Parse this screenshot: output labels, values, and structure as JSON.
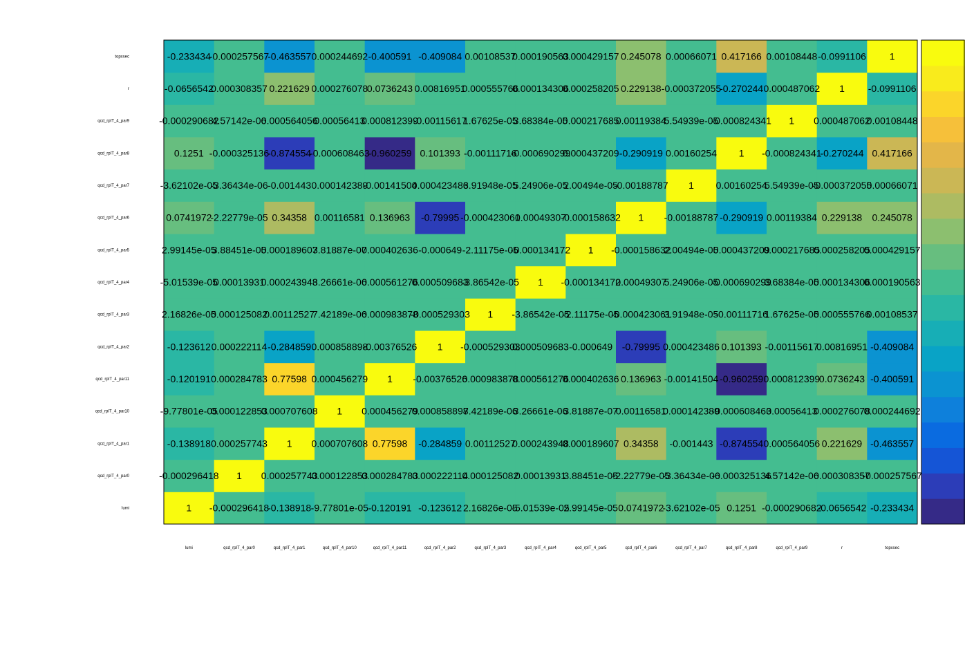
{
  "chart_data": {
    "type": "heatmap",
    "title": "",
    "xlabel": "",
    "ylabel": "",
    "grid": false,
    "zlim": [
      -1,
      1
    ],
    "palette": [
      "#352A87",
      "#2C3DB8",
      "#1555D6",
      "#0A6BE0",
      "#0E80DB",
      "#0B93D1",
      "#09A3C6",
      "#17AEB6",
      "#2AB7A4",
      "#44BD90",
      "#67BE7F",
      "#8CBF6F",
      "#ADBB62",
      "#CBB755",
      "#E3B649",
      "#F6C03A",
      "#FBD52A",
      "#F9EB1C",
      "#F9FB0E"
    ],
    "labels": [
      "lumi",
      "qcd_rpIT_4_par0",
      "qcd_rpIT_4_par1",
      "qcd_rpIT_4_par10",
      "qcd_rpIT_4_par11",
      "qcd_rpIT_4_par2",
      "qcd_rpIT_4_par3",
      "qcd_rpIT_4_par4",
      "qcd_rpIT_4_par5",
      "qcd_rpIT_4_par6",
      "qcd_rpIT_4_par7",
      "qcd_rpIT_4_par8",
      "qcd_rpIT_4_par9",
      "r",
      "topxsec"
    ],
    "matrix": [
      [
        1,
        -0.000296418,
        -0.138918,
        -9.77801e-05,
        -0.120191,
        -0.123612,
        2.16826e-05,
        -5.01539e-05,
        2.99145e-05,
        0.0741972,
        -3.62102e-05,
        0.1251,
        -0.000290682,
        -0.0656542,
        -0.233434
      ],
      [
        -0.000296418,
        1,
        0.000257743,
        0.000122853,
        0.000284783,
        0.000222114,
        0.000125082,
        0.00013931,
        3.88451e-05,
        -2.22779e-05,
        -3.36434e-06,
        -0.000325136,
        4.57142e-06,
        0.000308357,
        -0.000257567
      ],
      [
        -0.138918,
        0.000257743,
        1,
        0.000707608,
        0.77598,
        -0.284859,
        0.00112527,
        0.000243948,
        0.000189607,
        0.34358,
        -0.001443,
        -0.874554,
        0.000564056,
        0.221629,
        -0.463557
      ],
      [
        -9.77801e-05,
        0.000122853,
        0.000707608,
        1,
        0.000456279,
        0.000858898,
        7.42189e-06,
        3.26661e-06,
        3.81887e-07,
        0.00116581,
        0.000142389,
        -0.000608463,
        0.00056413,
        0.000276078,
        0.000244692
      ],
      [
        -0.120191,
        0.000284783,
        0.77598,
        0.000456279,
        1,
        -0.00376526,
        0.000983878,
        0.000561276,
        0.000402636,
        0.136963,
        -0.00141504,
        -0.960259,
        0.000812399,
        0.0736243,
        -0.400591
      ],
      [
        -0.123612,
        0.000222114,
        -0.284859,
        0.000858898,
        -0.00376526,
        1,
        -0.000529303,
        0.000509683,
        -0.000649,
        -0.79995,
        0.000423486,
        0.101393,
        -0.00115617,
        0.00816951,
        -0.409084
      ],
      [
        2.16826e-05,
        0.000125082,
        0.00112527,
        7.42189e-06,
        0.000983878,
        -0.000529303,
        1,
        -3.86542e-05,
        -2.11175e-05,
        -0.000423061,
        3.91948e-05,
        -0.00111716,
        1.67625e-05,
        0.000555766,
        0.00108537
      ],
      [
        -5.01539e-05,
        0.00013931,
        0.000243948,
        3.26661e-06,
        0.000561276,
        0.000509683,
        -3.86542e-05,
        1,
        -0.000134172,
        0.00049307,
        5.24906e-05,
        -0.000690299,
        3.68384e-05,
        0.000134306,
        0.000190563
      ],
      [
        2.99145e-05,
        3.88451e-05,
        0.000189607,
        3.81887e-07,
        0.000402636,
        -0.000649,
        -2.11175e-05,
        -0.000134172,
        1,
        -0.000158632,
        2.00494e-05,
        0.000437209,
        0.000217685,
        0.000258205,
        0.000429157
      ],
      [
        0.0741972,
        -2.22779e-05,
        0.34358,
        0.00116581,
        0.136963,
        -0.79995,
        -0.000423061,
        0.00049307,
        -0.000158632,
        1,
        -0.00188787,
        -0.290919,
        0.00119384,
        0.229138,
        0.245078
      ],
      [
        -3.62102e-05,
        -3.36434e-06,
        -0.001443,
        0.000142389,
        -0.00141504,
        0.000423486,
        3.91948e-05,
        5.24906e-05,
        2.00494e-05,
        -0.00188787,
        1,
        0.00160254,
        5.54939e-05,
        -0.000372055,
        0.00066071
      ],
      [
        0.1251,
        -0.000325136,
        -0.874554,
        -0.000608463,
        -0.960259,
        0.101393,
        -0.00111716,
        -0.000690299,
        0.000437209,
        -0.290919,
        0.00160254,
        1,
        -0.000824341,
        -0.270244,
        0.417166
      ],
      [
        -0.000290682,
        4.57142e-06,
        0.000564056,
        0.00056413,
        0.000812399,
        -0.00115617,
        1.67625e-05,
        3.68384e-05,
        0.000217685,
        0.00119384,
        5.54939e-05,
        -0.000824341,
        1,
        0.000487062,
        0.00108448
      ],
      [
        -0.0656542,
        0.000308357,
        0.221629,
        0.000276078,
        0.0736243,
        0.00816951,
        0.000555766,
        0.000134306,
        0.000258205,
        0.229138,
        -0.000372055,
        -0.270244,
        0.000487062,
        1,
        -0.0991106
      ],
      [
        -0.233434,
        -0.000257567,
        -0.463557,
        0.000244692,
        -0.400591,
        -0.409084,
        0.00108537,
        0.000190563,
        0.000429157,
        0.245078,
        0.00066071,
        0.417166,
        0.00108448,
        -0.0991106,
        1
      ]
    ],
    "cell_text": [
      [
        "1",
        "-0.000296418",
        "-0.138918",
        "-9.77801e-05",
        "-0.120191",
        "-0.123612",
        "2.16826e-05",
        "-5.01539e-05",
        "2.99145e-05",
        "0.0741972",
        "-3.62102e-05",
        "0.1251",
        "-0.000290682",
        "-0.0656542",
        "-0.233434"
      ],
      [
        "-0.000296418",
        "1",
        "0.000257743",
        "0.000122853",
        "0.000284783",
        "0.000222114",
        "0.000125082",
        "0.00013931",
        "3.88451e-05",
        "-2.22779e-05",
        "-3.36434e-06",
        "-0.000325136",
        "4.57142e-06",
        "0.000308357",
        "-0.000257567"
      ],
      [
        "-0.138918",
        "0.000257743",
        "1",
        "0.000707608",
        "0.77598",
        "-0.284859",
        "0.00112527",
        "0.000243948",
        "0.000189607",
        "0.34358",
        "-0.001443",
        "-0.874554",
        "0.000564056",
        "0.221629",
        "-0.463557"
      ],
      [
        "-9.77801e-05",
        "0.000122853",
        "0.000707608",
        "1",
        "0.000456279",
        "0.000858898",
        "7.42189e-06",
        "3.26661e-06",
        "3.81887e-07",
        "0.00116581",
        "0.000142389",
        "-0.000608463",
        "0.00056413",
        "0.000276078",
        "0.000244692"
      ],
      [
        "-0.120191",
        "0.000284783",
        "0.77598",
        "0.000456279",
        "1",
        "-0.00376526",
        "0.000983878",
        "0.000561276",
        "0.000402636",
        "0.136963",
        "-0.00141504",
        "-0.960259",
        "0.000812399",
        "0.0736243",
        "-0.400591"
      ],
      [
        "-0.123612",
        "0.000222114",
        "-0.284859",
        "0.000858898",
        "-0.00376526",
        "1",
        "-0.000529303",
        "0.000509683",
        "-0.000649",
        "-0.79995",
        "0.000423486",
        "0.101393",
        "-0.00115617",
        "0.00816951",
        "-0.409084"
      ],
      [
        "2.16826e-05",
        "0.000125082",
        "0.00112527",
        "7.42189e-06",
        "0.000983878",
        "-0.000529303",
        "1",
        "-3.86542e-05",
        "-2.11175e-05",
        "-0.000423061",
        "3.91948e-05",
        "-0.00111716",
        "1.67625e-05",
        "0.000555766",
        "0.00108537"
      ],
      [
        "-5.01539e-05",
        "0.00013931",
        "0.000243948",
        "3.26661e-06",
        "0.000561276",
        "0.000509683",
        "-3.86542e-05",
        "1",
        "-0.000134172",
        "0.00049307",
        "5.24906e-05",
        "-0.000690299",
        "3.68384e-05",
        "0.000134306",
        "0.000190563"
      ],
      [
        "2.99145e-05",
        "3.88451e-05",
        "0.000189607",
        "3.81887e-07",
        "0.000402636",
        "-0.000649",
        "-2.11175e-05",
        "-0.000134172",
        "1",
        "-0.000158632",
        "2.00494e-05",
        "0.000437209",
        "0.000217685",
        "0.000258205",
        "0.000429157"
      ],
      [
        "0.0741972",
        "-2.22779e-05",
        "0.34358",
        "0.00116581",
        "0.136963",
        "-0.79995",
        "-0.000423061",
        "0.00049307",
        "-0.000158632",
        "1",
        "-0.00188787",
        "-0.290919",
        "0.00119384",
        "0.229138",
        "0.245078"
      ],
      [
        "-3.62102e-05",
        "-3.36434e-06",
        "-0.001443",
        "0.000142389",
        "-0.00141504",
        "0.000423486",
        "3.91948e-05",
        "5.24906e-05",
        "2.00494e-05",
        "-0.00188787",
        "1",
        "0.00160254",
        "5.54939e-05",
        "-0.000372055",
        "0.00066071"
      ],
      [
        "0.1251",
        "-0.000325136",
        "-0.874554",
        "-0.000608463",
        "-0.960259",
        "0.101393",
        "-0.00111716",
        "-0.000690299",
        "0.000437209",
        "-0.290919",
        "0.00160254",
        "1",
        "-0.000824341",
        "-0.270244",
        "0.417166"
      ],
      [
        "-0.000290682",
        "4.57142e-06",
        "0.000564056",
        "0.00056413",
        "0.000812399",
        "-0.00115617",
        "1.67625e-05",
        "3.68384e-05",
        "0.000217685",
        "0.00119384",
        "5.54939e-05",
        "-0.000824341",
        "1",
        "0.000487062",
        "0.00108448"
      ],
      [
        "-0.0656542",
        "0.000308357",
        "0.221629",
        "0.000276078",
        "0.0736243",
        "0.00816951",
        "0.000555766",
        "0.000134306",
        "0.000258205",
        "0.229138",
        "-0.000372055",
        "-0.270244",
        "0.000487062",
        "1",
        "-0.0991106"
      ],
      [
        "-0.233434",
        "-0.000257567",
        "-0.463557",
        "0.000244692",
        "-0.400591",
        "-0.409084",
        "0.00108537",
        "0.000190563",
        "0.000429157",
        "0.245078",
        "0.00066071",
        "0.417166",
        "0.00108448",
        "-0.0991106",
        "1"
      ]
    ]
  }
}
